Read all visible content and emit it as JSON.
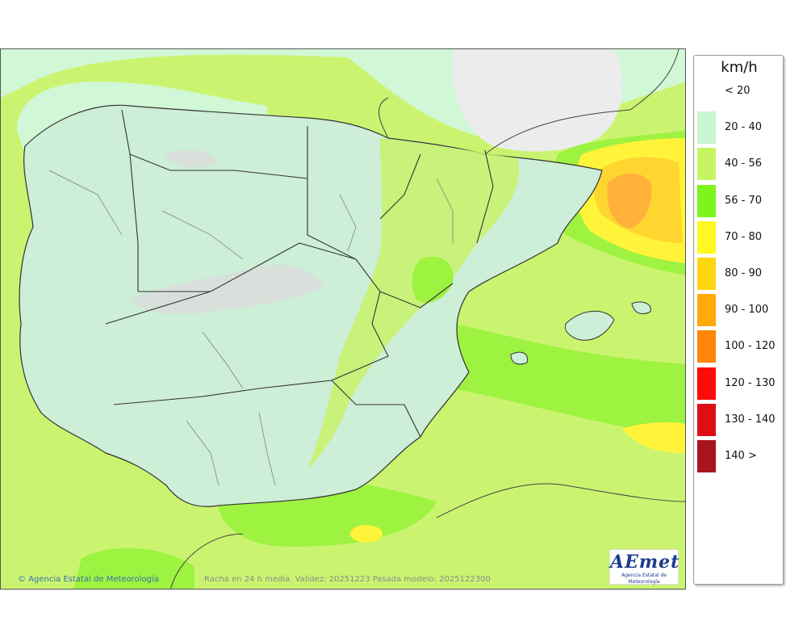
{
  "map": {
    "credit": "Agencia Estatal de Meteorología",
    "credit_icon": "copyright-icon",
    "validity_text": "Racha en 24 h media. Validez: 20251223 Pasada modelo: 2025122300",
    "logo": {
      "mark": "AEmet",
      "subtitle": "Agencia Estatal de Meteorología"
    }
  },
  "legend": {
    "title": "km/h",
    "items": [
      {
        "label": "< 20",
        "color": "#ffffff"
      },
      {
        "label": "20 - 40",
        "color": "#c8f5d2"
      },
      {
        "label": "40 - 56",
        "color": "#c6f563"
      },
      {
        "label": "56 - 70",
        "color": "#7ef51a"
      },
      {
        "label": "70 - 80",
        "color": "#fff721"
      },
      {
        "label": "80 - 90",
        "color": "#ffd410"
      },
      {
        "label": "90 - 100",
        "color": "#ffaa0a"
      },
      {
        "label": "100 - 120",
        "color": "#ff8608"
      },
      {
        "label": "120 - 130",
        "color": "#ff0a0a"
      },
      {
        "label": "130 - 140",
        "color": "#dc0e16"
      },
      {
        "label": "140 >",
        "color": "#a8151f"
      }
    ]
  }
}
